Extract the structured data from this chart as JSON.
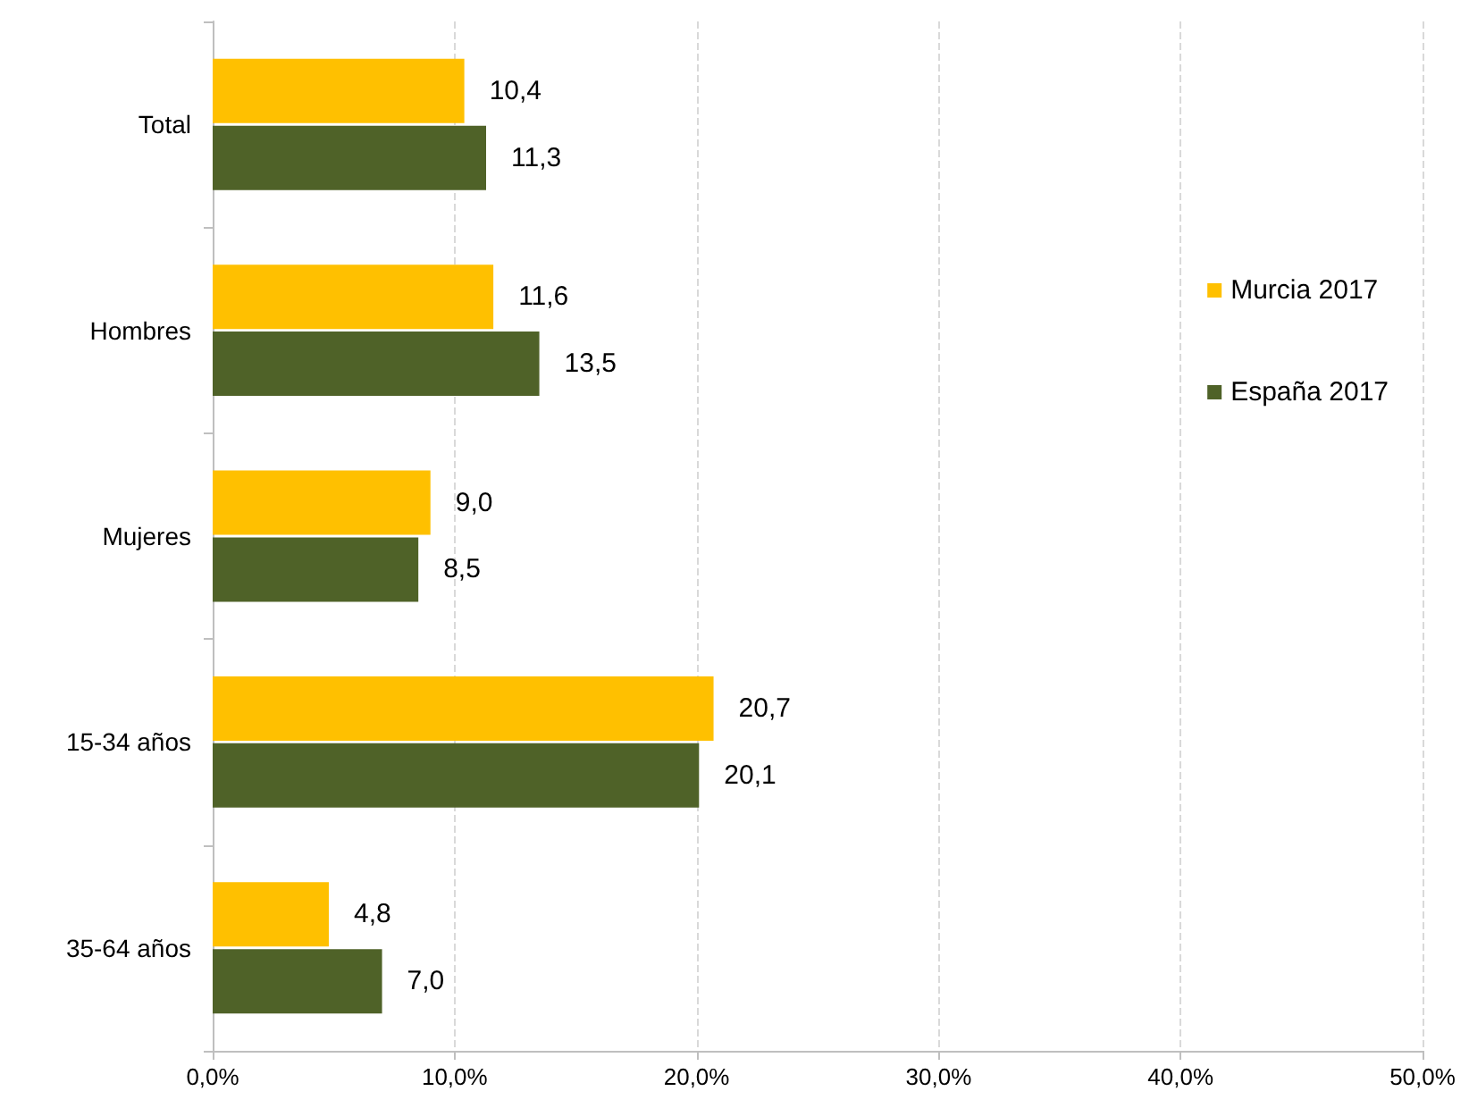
{
  "chart_data": {
    "type": "bar",
    "orientation": "horizontal",
    "categories": [
      "Total",
      "Hombres",
      "Mujeres",
      "15-34 años",
      "35-64 años"
    ],
    "series": [
      {
        "name": "Murcia 2017",
        "color": "#ffc000",
        "values": [
          10.4,
          11.6,
          9.0,
          20.7,
          4.8
        ],
        "value_labels": [
          "10,4",
          "11,6",
          "9,0",
          "20,7",
          "4,8"
        ]
      },
      {
        "name": "España 2017",
        "color": "#4f6228",
        "values": [
          11.3,
          13.5,
          8.5,
          20.1,
          7.0
        ],
        "value_labels": [
          "11,3",
          "13,5",
          "8,5",
          "20,1",
          "7,0"
        ]
      }
    ],
    "xlim": [
      0,
      50
    ],
    "xticks": [
      {
        "value": 0,
        "label": "0,0%"
      },
      {
        "value": 10,
        "label": "10,0%"
      },
      {
        "value": 20,
        "label": "20,0%"
      },
      {
        "value": 30,
        "label": "30,0%"
      },
      {
        "value": 40,
        "label": "40,0%"
      },
      {
        "value": 50,
        "label": "50,0%"
      }
    ],
    "grid": "x",
    "legend": "right"
  }
}
